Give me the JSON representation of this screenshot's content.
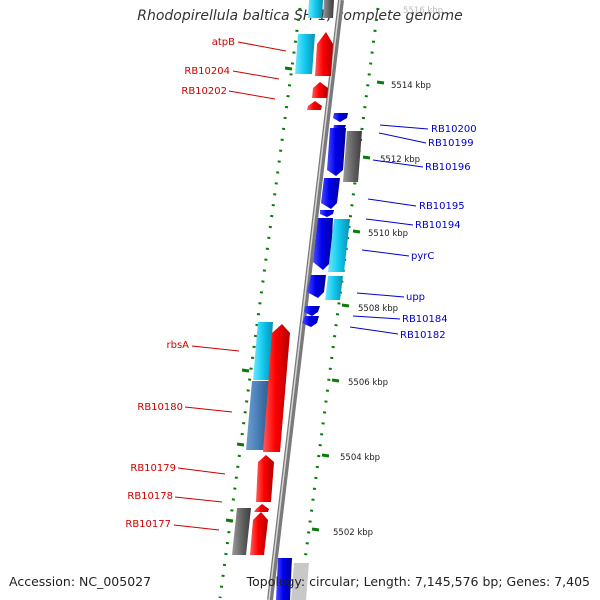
{
  "title": "Rhodopirellula baltica SH 1, complete genome",
  "accession": "Accession: NC_005027",
  "summary": "Topology: circular; Length: 7,145,576 bp; Genes: 7,405",
  "colors": {
    "backbone": "#8a8a8a",
    "forward": "#ff0000",
    "reverse": "#0000ff",
    "rna": "#00ccff",
    "pseudo": "#666666",
    "ticks": "#0a7a0a"
  },
  "scale_labels": [
    "5516 kbp",
    "5514 kbp",
    "5512 kbp",
    "5510 kbp",
    "5508 kbp",
    "5506 kbp",
    "5504 kbp",
    "5502 kbp"
  ],
  "left_labels": [
    "atpB",
    "RB10204",
    "RB10202",
    "rbsA",
    "RB10180",
    "RB10179",
    "RB10178",
    "RB10177"
  ],
  "right_labels": [
    "RB10200",
    "RB10199",
    "RB10196",
    "RB10195",
    "RB10194",
    "pyrC",
    "upp",
    "RB10184",
    "RB10182"
  ]
}
